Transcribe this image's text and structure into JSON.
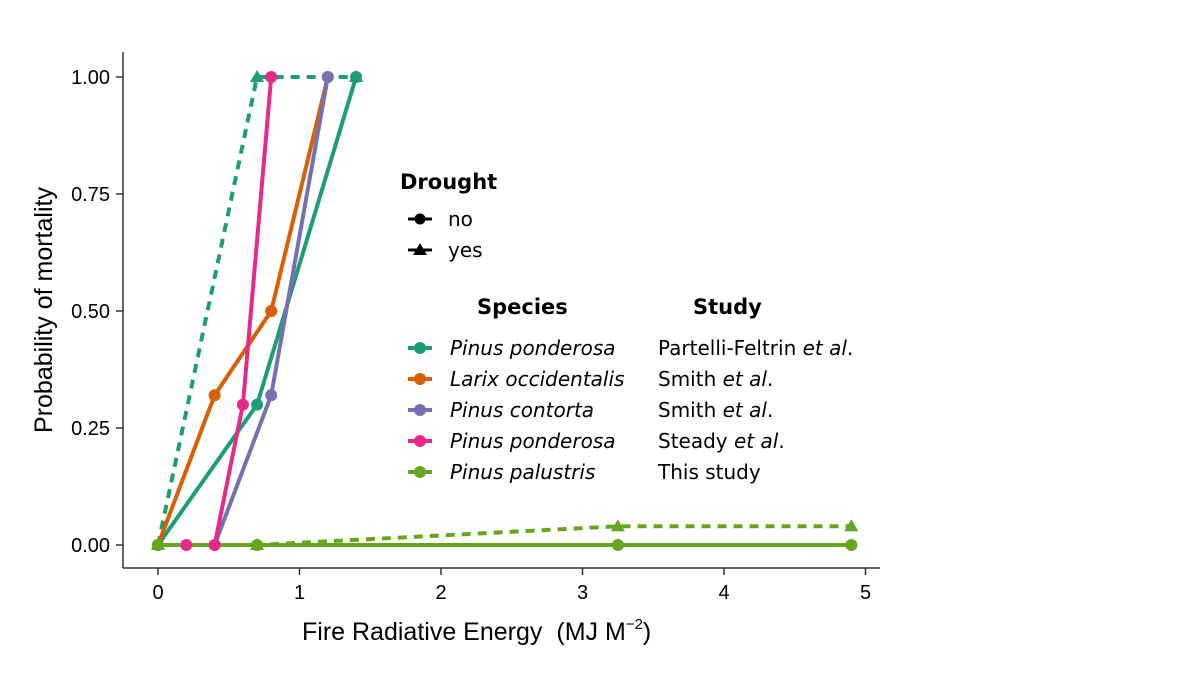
{
  "chart_data": {
    "type": "line",
    "xlabel": "Fire Radiative Energy",
    "xlabel_unit_base": "(MJ  M",
    "xlabel_unit_exp": "−2",
    "xlabel_unit_close": ")",
    "ylabel": "Probability of mortality",
    "xlim": [
      -0.25,
      5.1
    ],
    "ylim": [
      -0.05,
      1.05
    ],
    "xticks": [
      0,
      1,
      2,
      3,
      4,
      5
    ],
    "xtick_labels": [
      "0",
      "1",
      "2",
      "3",
      "4",
      "5"
    ],
    "yticks": [
      0,
      0.25,
      0.5,
      0.75,
      1
    ],
    "ytick_labels": [
      "0.00",
      "0.25",
      "0.50",
      "0.75",
      "1.00"
    ],
    "grid": false,
    "legend_drought": {
      "title": "Drought",
      "items": [
        {
          "label": "no",
          "marker": "circle",
          "linestyle": "solid"
        },
        {
          "label": "yes",
          "marker": "triangle",
          "linestyle": "dashed"
        }
      ]
    },
    "legend_species": {
      "species_title": "Species",
      "study_title": "Study",
      "items": [
        {
          "species": "Pinus ponderosa",
          "study_main": "Partelli-Feltrin ",
          "study_etal": "et al",
          "study_end": ".",
          "color": "#1b9e77"
        },
        {
          "species": "Larix occidentalis",
          "study_main": "Smith ",
          "study_etal": "et al",
          "study_end": ".",
          "color": "#d95f02"
        },
        {
          "species": "Pinus contorta",
          "study_main": "Smith ",
          "study_etal": "et al",
          "study_end": ".",
          "color": "#7570b3"
        },
        {
          "species": "Pinus ponderosa",
          "study_main": "Steady ",
          "study_etal": "et al",
          "study_end": ".",
          "color": "#e7298a"
        },
        {
          "species": "Pinus palustris",
          "study_main": "This study",
          "study_etal": "",
          "study_end": "",
          "color": "#66a61e"
        }
      ]
    },
    "series": [
      {
        "color": "#1b9e77",
        "drought": "no",
        "x": [
          0,
          0.7,
          1.4
        ],
        "y": [
          0,
          0.3,
          1.0
        ]
      },
      {
        "color": "#1b9e77",
        "drought": "yes",
        "x": [
          0,
          0.7,
          1.4
        ],
        "y": [
          0,
          1.0,
          1.0
        ]
      },
      {
        "color": "#d95f02",
        "drought": "no",
        "x": [
          0,
          0.4,
          0.8,
          1.2
        ],
        "y": [
          0,
          0.32,
          0.5,
          1.0
        ]
      },
      {
        "color": "#7570b3",
        "drought": "no",
        "x": [
          0.4,
          0.8,
          1.2
        ],
        "y": [
          0,
          0.32,
          1.0
        ]
      },
      {
        "color": "#e7298a",
        "drought": "no",
        "x": [
          0.2,
          0.4,
          0.6,
          0.8
        ],
        "y": [
          0,
          0,
          0.3,
          1.0
        ]
      },
      {
        "color": "#66a61e",
        "drought": "no",
        "x": [
          0,
          0.7,
          3.25,
          4.9
        ],
        "y": [
          0,
          0,
          0,
          0
        ]
      },
      {
        "color": "#66a61e",
        "drought": "yes",
        "x": [
          0,
          0.7,
          3.25,
          4.9
        ],
        "y": [
          0,
          0,
          0.04,
          0.04
        ]
      }
    ]
  }
}
